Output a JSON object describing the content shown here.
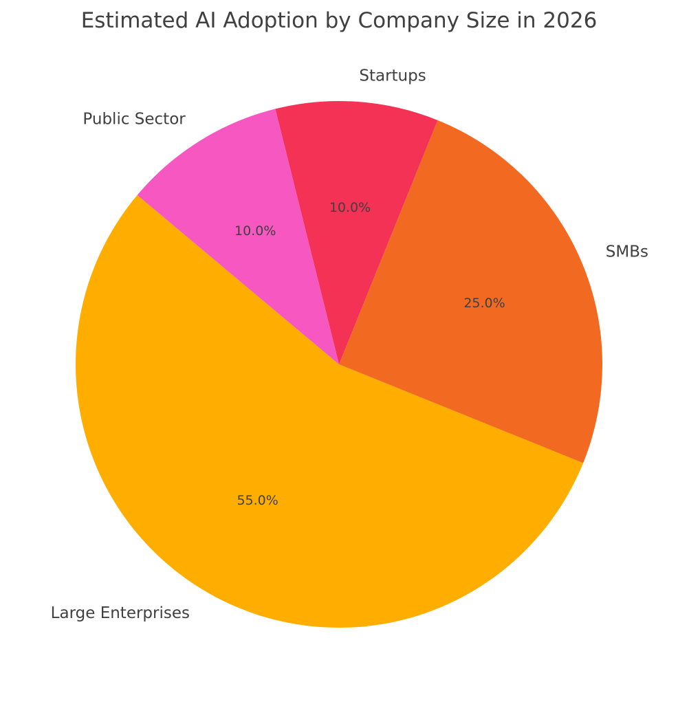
{
  "chart_data": {
    "type": "pie",
    "title": "Estimated AI Adoption by Company Size in 2026",
    "categories": [
      "Large Enterprises",
      "SMBs",
      "Startups",
      "Public Sector"
    ],
    "values": [
      55,
      25,
      10,
      10
    ],
    "percent_labels": [
      "55.0%",
      "25.0%",
      "10.0%",
      "10.0%"
    ],
    "colors": [
      "#FFAE00",
      "#F26A22",
      "#F43256",
      "#F757C1"
    ],
    "start_angle_deg": 140,
    "direction": "counterclockwise",
    "legend": "none"
  }
}
